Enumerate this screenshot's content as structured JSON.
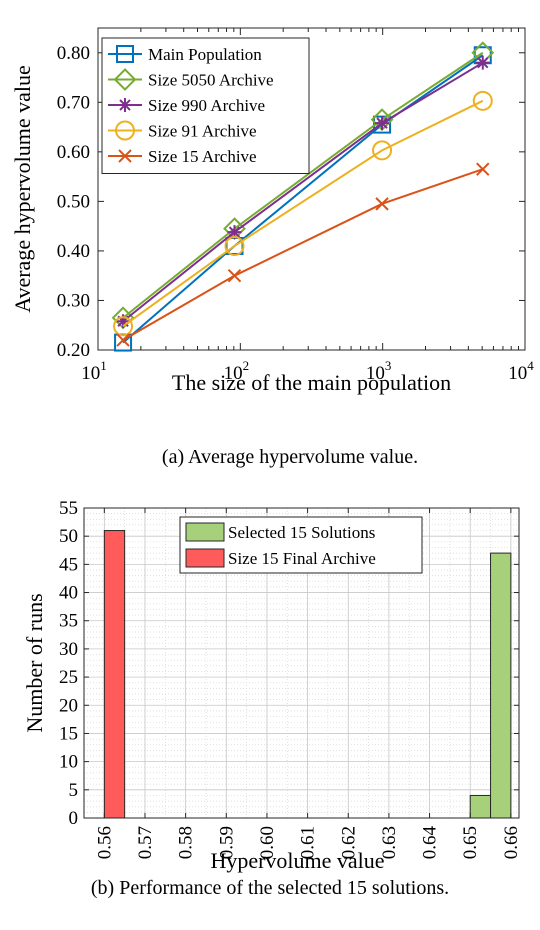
{
  "chart_data": [
    {
      "type": "line",
      "caption": "(a) Average hypervolume value.",
      "xlabel": "The size of the main population",
      "ylabel": "Average hypervolume value",
      "xscale": "log",
      "xlim": [
        10,
        10000
      ],
      "ylim": [
        0.2,
        0.85
      ],
      "x": [
        15,
        91,
        990,
        5050
      ],
      "x_ticks": [
        {
          "value": 10,
          "base": "10",
          "exp": "1"
        },
        {
          "value": 100,
          "base": "10",
          "exp": "2"
        },
        {
          "value": 1000,
          "base": "10",
          "exp": "3"
        },
        {
          "value": 10000,
          "base": "10",
          "exp": "4"
        }
      ],
      "y_ticks": [
        {
          "value": 0.2,
          "label": "0.20"
        },
        {
          "value": 0.3,
          "label": "0.30"
        },
        {
          "value": 0.4,
          "label": "0.40"
        },
        {
          "value": 0.5,
          "label": "0.50"
        },
        {
          "value": 0.6,
          "label": "0.60"
        },
        {
          "value": 0.7,
          "label": "0.70"
        },
        {
          "value": 0.8,
          "label": "0.80"
        }
      ],
      "legend_position": "top-left",
      "series": [
        {
          "name": "Main Population",
          "marker": "square",
          "color": "#0072BD",
          "values": [
            0.215,
            0.41,
            0.655,
            0.795
          ]
        },
        {
          "name": "Size 5050 Archive",
          "marker": "diamond",
          "color": "#77AC30",
          "values": [
            0.265,
            0.445,
            0.665,
            0.8
          ]
        },
        {
          "name": "Size 990 Archive",
          "marker": "asterisk",
          "color": "#7E2F8E",
          "values": [
            0.258,
            0.438,
            0.658,
            0.78
          ]
        },
        {
          "name": "Size 91 Archive",
          "marker": "circle",
          "color": "#EDB120",
          "values": [
            0.248,
            0.41,
            0.603,
            0.703
          ]
        },
        {
          "name": "Size 15 Archive",
          "marker": "x",
          "color": "#D95319",
          "values": [
            0.22,
            0.35,
            0.495,
            0.565
          ]
        }
      ]
    },
    {
      "type": "bar",
      "caption": "(b) Performance of the selected 15 solutions.",
      "xlabel": "Hypervolume value",
      "ylabel": "Number of runs",
      "xlim": [
        0.555,
        0.662
      ],
      "ylim": [
        0,
        55
      ],
      "bin_width": 0.005,
      "grid": true,
      "legend_position": "top-center",
      "x_ticks": [
        "0.56",
        "0.57",
        "0.58",
        "0.59",
        "0.60",
        "0.61",
        "0.62",
        "0.63",
        "0.64",
        "0.65",
        "0.66"
      ],
      "y_ticks": [
        "0",
        "5",
        "10",
        "15",
        "20",
        "25",
        "30",
        "35",
        "40",
        "45",
        "50",
        "55"
      ],
      "series": [
        {
          "name": "Selected 15 Solutions",
          "color": "#A6D07A",
          "bins": [
            {
              "start": 0.65,
              "count": 4
            },
            {
              "start": 0.655,
              "count": 47
            }
          ]
        },
        {
          "name": "Size 15 Final Archive",
          "color": "#FF5B5B",
          "bins": [
            {
              "start": 0.56,
              "count": 51
            }
          ]
        }
      ]
    }
  ]
}
